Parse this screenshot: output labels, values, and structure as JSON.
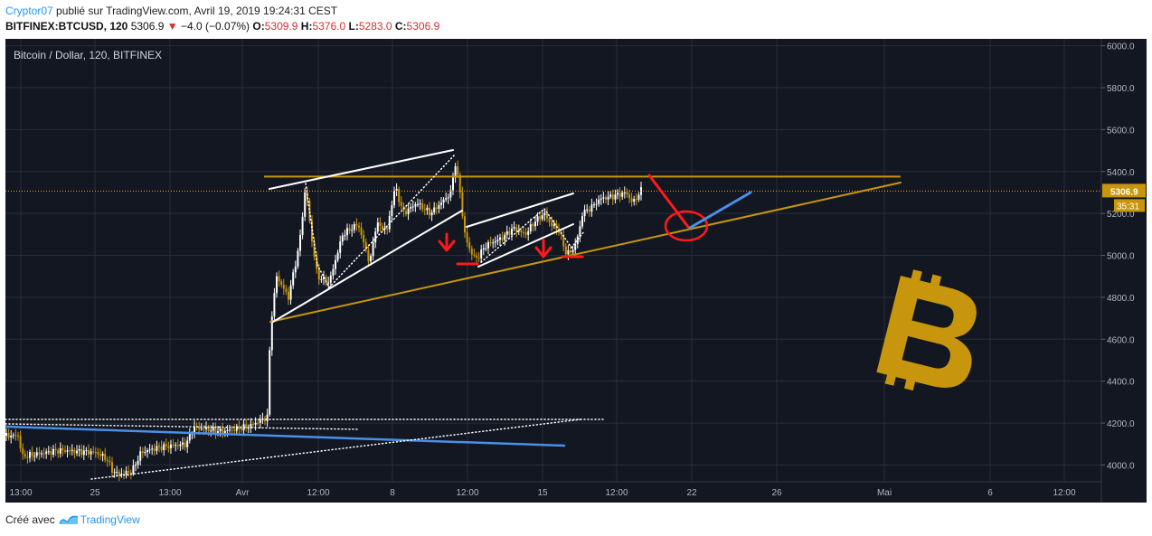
{
  "header": {
    "user": "Cryptor07",
    "published_text": "publié sur TradingView.com, Avril 19, 2019 19:24:31 CEST",
    "symbol": "BITFINEX:BTCUSD, 120",
    "last": "5306.9",
    "change": "−4.0 (−0.07%)",
    "o_label": "O:",
    "o_value": "5309.9",
    "h_label": "H:",
    "h_value": "5376.0",
    "l_label": "L:",
    "l_value": "5283.0",
    "c_label": "C:",
    "c_value": "5306.9"
  },
  "footer": {
    "created_with": "Créé avec",
    "brand": "TradingView"
  },
  "colors": {
    "background": "#131722",
    "grid": "#2a2e39",
    "bull": "#ffffff",
    "bear": "#c8960c",
    "gold": "#c8960c",
    "blue": "#4a8fe8",
    "red": "#ff1a1a",
    "axis_text": "#b2b5be"
  },
  "chart_data": {
    "type": "candlestick",
    "title": "Bitcoin / Dollar, 120, BITFINEX",
    "ylim": [
      3920,
      6020
    ],
    "y_ticks": [
      "6000.0",
      "5800.0",
      "5600.0",
      "5400.0",
      "5200.0",
      "5000.0",
      "4800.0",
      "4600.0",
      "4400.0",
      "4200.0",
      "4000.0"
    ],
    "x_ticks": [
      "13:00",
      "25",
      "13:00",
      "Avr",
      "12:00",
      "8",
      "12:00",
      "15",
      "12:00",
      "22",
      "26",
      "Mai",
      "6",
      "12:00"
    ],
    "price_label": "5306.9",
    "countdown_label": "35:31",
    "resistance_level": 5376,
    "annotations": [
      "rising wedge",
      "rising channel",
      "resistance line",
      "ascending support trendline",
      "down arrows",
      "red circle target",
      "blue projection",
      "bitcoin logo"
    ]
  }
}
